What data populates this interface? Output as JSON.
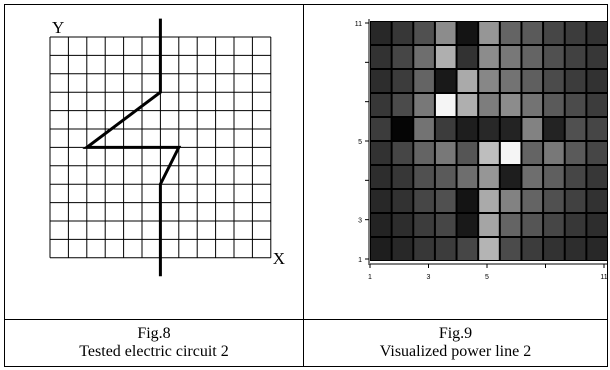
{
  "figures": [
    {
      "id": "fig8",
      "label": "Fig.8",
      "caption": "Tested electric circuit 2",
      "axis_x_label": "X",
      "axis_y_label": "Y",
      "grid": {
        "cols": 12,
        "rows": 12
      },
      "circuit_path": [
        [
          6,
          -1
        ],
        [
          6,
          3
        ],
        [
          2,
          6
        ],
        [
          7,
          6
        ],
        [
          6,
          8
        ],
        [
          6,
          13
        ]
      ]
    },
    {
      "id": "fig9",
      "label": "Fig.9",
      "caption": "Visualized power line 2",
      "x_ticks": [
        "1",
        "3",
        "5",
        "",
        "11"
      ],
      "y_ticks": [
        "11",
        "",
        "",
        "5",
        "",
        "3",
        "1"
      ],
      "heatmap": [
        [
          40,
          55,
          80,
          140,
          20,
          150,
          100,
          90,
          70,
          60,
          50
        ],
        [
          50,
          70,
          110,
          175,
          50,
          140,
          120,
          100,
          80,
          65,
          55
        ],
        [
          45,
          60,
          100,
          25,
          170,
          135,
          115,
          95,
          75,
          60,
          50
        ],
        [
          55,
          75,
          120,
          245,
          175,
          125,
          140,
          115,
          90,
          75,
          60
        ],
        [
          60,
          5,
          115,
          60,
          30,
          40,
          35,
          130,
          35,
          80,
          70
        ],
        [
          50,
          70,
          100,
          120,
          85,
          190,
          245,
          100,
          120,
          90,
          70
        ],
        [
          45,
          55,
          80,
          90,
          110,
          150,
          30,
          110,
          95,
          70,
          55
        ],
        [
          40,
          50,
          70,
          80,
          20,
          170,
          130,
          100,
          80,
          65,
          50
        ],
        [
          35,
          45,
          60,
          70,
          25,
          165,
          100,
          85,
          70,
          55,
          45
        ],
        [
          30,
          40,
          55,
          60,
          70,
          180,
          75,
          60,
          50,
          45,
          40
        ]
      ]
    }
  ]
}
